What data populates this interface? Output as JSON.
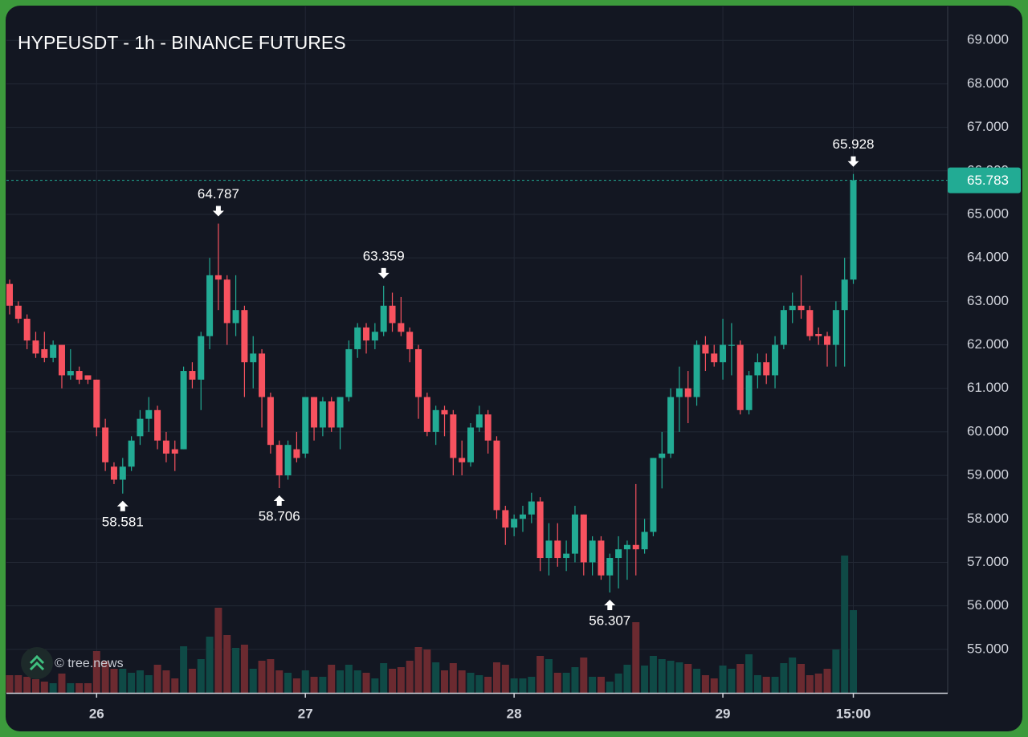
{
  "chart_data": {
    "type": "candlestick",
    "title": "HYPEUSDT - 1h - BINANCE FUTURES",
    "watermark": "© tree.news",
    "categories": [
      null,
      null,
      null,
      null,
      null,
      null,
      null,
      null,
      null,
      null,
      "26",
      null,
      null,
      null,
      null,
      null,
      null,
      null,
      null,
      null,
      null,
      null,
      null,
      null,
      null,
      null,
      null,
      null,
      null,
      null,
      null,
      null,
      null,
      null,
      "27",
      null,
      null,
      null,
      null,
      null,
      null,
      null,
      null,
      null,
      null,
      null,
      null,
      null,
      null,
      null,
      null,
      null,
      null,
      null,
      null,
      null,
      null,
      null,
      "28",
      null,
      null,
      null,
      null,
      null,
      null,
      null,
      null,
      null,
      null,
      null,
      null,
      null,
      null,
      null,
      null,
      null,
      null,
      null,
      null,
      null,
      null,
      null,
      "29",
      null,
      null,
      null,
      null,
      null,
      null,
      null,
      null,
      null,
      null,
      null,
      null,
      null,
      null,
      "15:00"
    ],
    "ohlc": [
      [
        63.4,
        63.5,
        62.7,
        62.9
      ],
      [
        62.9,
        63.0,
        62.5,
        62.6
      ],
      [
        62.6,
        62.7,
        61.9,
        62.1
      ],
      [
        62.1,
        62.3,
        61.7,
        61.8
      ],
      [
        61.9,
        62.3,
        61.6,
        61.7
      ],
      [
        61.7,
        62.1,
        61.6,
        62.0
      ],
      [
        62.0,
        62.0,
        61.0,
        61.3
      ],
      [
        61.3,
        61.9,
        61.2,
        61.4
      ],
      [
        61.4,
        61.5,
        61.1,
        61.2
      ],
      [
        61.3,
        61.3,
        61.1,
        61.2
      ],
      [
        61.2,
        61.2,
        59.9,
        60.1
      ],
      [
        60.1,
        60.3,
        59.1,
        59.3
      ],
      [
        59.2,
        59.3,
        58.8,
        58.9
      ],
      [
        58.9,
        59.4,
        58.581,
        59.2
      ],
      [
        59.2,
        59.9,
        59.1,
        59.8
      ],
      [
        59.9,
        60.5,
        59.7,
        60.3
      ],
      [
        60.3,
        60.8,
        60.0,
        60.5
      ],
      [
        60.5,
        60.6,
        59.6,
        59.8
      ],
      [
        59.8,
        60.0,
        59.3,
        59.5
      ],
      [
        59.6,
        59.8,
        59.1,
        59.5
      ],
      [
        59.6,
        61.5,
        59.6,
        61.4
      ],
      [
        61.4,
        61.6,
        61.0,
        61.2
      ],
      [
        61.2,
        62.3,
        60.5,
        62.2
      ],
      [
        62.2,
        64.0,
        61.9,
        63.6
      ],
      [
        63.6,
        64.787,
        62.8,
        63.5
      ],
      [
        63.5,
        63.6,
        62.0,
        62.5
      ],
      [
        62.5,
        63.6,
        62.2,
        62.8
      ],
      [
        62.8,
        62.9,
        60.8,
        61.6
      ],
      [
        61.6,
        62.2,
        61.0,
        61.8
      ],
      [
        61.8,
        61.9,
        60.1,
        60.8
      ],
      [
        60.8,
        60.9,
        59.5,
        59.7
      ],
      [
        59.7,
        59.8,
        58.706,
        59.0
      ],
      [
        59.0,
        59.8,
        58.9,
        59.7
      ],
      [
        59.6,
        60.0,
        59.3,
        59.4
      ],
      [
        59.5,
        60.8,
        59.4,
        60.8
      ],
      [
        60.8,
        60.8,
        59.8,
        60.1
      ],
      [
        60.1,
        60.8,
        59.9,
        60.7
      ],
      [
        60.7,
        60.8,
        60.0,
        60.1
      ],
      [
        60.1,
        60.8,
        59.6,
        60.8
      ],
      [
        60.8,
        62.1,
        60.7,
        61.9
      ],
      [
        61.9,
        62.5,
        61.7,
        62.4
      ],
      [
        62.4,
        62.5,
        61.8,
        62.1
      ],
      [
        62.1,
        62.5,
        61.9,
        62.3
      ],
      [
        62.3,
        63.359,
        62.2,
        62.9
      ],
      [
        62.9,
        63.2,
        62.3,
        62.5
      ],
      [
        62.5,
        63.1,
        62.2,
        62.3
      ],
      [
        62.3,
        62.4,
        61.6,
        61.9
      ],
      [
        61.9,
        62.0,
        60.3,
        60.8
      ],
      [
        60.8,
        60.9,
        59.9,
        60.0
      ],
      [
        60.0,
        60.6,
        59.7,
        60.5
      ],
      [
        60.5,
        60.6,
        59.9,
        60.4
      ],
      [
        60.4,
        60.5,
        59.0,
        59.4
      ],
      [
        59.4,
        59.8,
        59.0,
        59.3
      ],
      [
        59.3,
        60.2,
        59.2,
        60.1
      ],
      [
        60.1,
        60.6,
        60.0,
        60.4
      ],
      [
        60.4,
        60.5,
        59.5,
        59.8
      ],
      [
        59.8,
        59.9,
        58.0,
        58.2
      ],
      [
        58.2,
        58.3,
        57.4,
        57.8
      ],
      [
        57.8,
        58.1,
        57.6,
        58.0
      ],
      [
        58.0,
        58.3,
        57.7,
        58.1
      ],
      [
        58.1,
        58.6,
        57.9,
        58.4
      ],
      [
        58.4,
        58.5,
        56.8,
        57.1
      ],
      [
        57.1,
        57.9,
        56.7,
        57.5
      ],
      [
        57.5,
        57.9,
        56.9,
        57.1
      ],
      [
        57.1,
        57.5,
        56.8,
        57.2
      ],
      [
        57.2,
        58.3,
        57.0,
        58.1
      ],
      [
        58.1,
        58.1,
        56.7,
        57.0
      ],
      [
        57.0,
        57.6,
        56.7,
        57.5
      ],
      [
        57.5,
        57.6,
        56.6,
        56.7
      ],
      [
        56.7,
        57.2,
        56.307,
        57.1
      ],
      [
        57.1,
        57.6,
        56.4,
        57.3
      ],
      [
        57.3,
        57.5,
        56.6,
        57.4
      ],
      [
        57.4,
        58.8,
        56.7,
        57.3
      ],
      [
        57.3,
        58.0,
        57.2,
        57.7
      ],
      [
        57.7,
        59.4,
        57.6,
        59.4
      ],
      [
        59.4,
        60.0,
        58.7,
        59.5
      ],
      [
        59.5,
        61.0,
        59.4,
        60.8
      ],
      [
        60.8,
        61.5,
        60.0,
        61.0
      ],
      [
        61.0,
        61.4,
        60.2,
        60.8
      ],
      [
        60.8,
        62.1,
        60.6,
        62.0
      ],
      [
        62.0,
        62.2,
        61.4,
        61.8
      ],
      [
        61.8,
        62.0,
        61.5,
        61.6
      ],
      [
        61.6,
        62.6,
        61.2,
        62.0
      ],
      [
        62.0,
        62.5,
        61.3,
        62.0
      ],
      [
        62.0,
        62.1,
        60.4,
        60.5
      ],
      [
        60.5,
        61.4,
        60.4,
        61.3
      ],
      [
        61.3,
        61.8,
        61.0,
        61.6
      ],
      [
        61.6,
        61.8,
        61.1,
        61.3
      ],
      [
        61.3,
        62.2,
        61.0,
        62.0
      ],
      [
        62.0,
        62.9,
        61.9,
        62.8
      ],
      [
        62.8,
        63.2,
        62.5,
        62.9
      ],
      [
        62.9,
        63.6,
        62.6,
        62.8
      ],
      [
        62.8,
        62.9,
        62.1,
        62.2
      ],
      [
        62.25,
        62.4,
        62.0,
        62.2
      ],
      [
        62.2,
        62.3,
        61.5,
        62.0
      ],
      [
        62.0,
        63.0,
        61.5,
        62.8
      ],
      [
        62.8,
        64.0,
        61.5,
        63.5
      ],
      [
        63.5,
        65.928,
        63.4,
        65.783
      ]
    ],
    "volume": [
      22,
      22,
      20,
      17,
      14,
      12,
      24,
      12,
      12,
      12,
      52,
      40,
      30,
      30,
      25,
      28,
      22,
      35,
      28,
      18,
      58,
      30,
      42,
      70,
      106,
      72,
      56,
      60,
      30,
      40,
      42,
      28,
      25,
      18,
      28,
      20,
      20,
      35,
      28,
      35,
      28,
      25,
      18,
      37,
      30,
      32,
      40,
      57,
      54,
      38,
      28,
      37,
      28,
      25,
      22,
      20,
      38,
      35,
      18,
      18,
      20,
      46,
      42,
      25,
      25,
      32,
      44,
      20,
      20,
      14,
      24,
      35,
      88,
      34,
      46,
      42,
      40,
      38,
      36,
      30,
      22,
      18,
      34,
      30,
      36,
      48,
      22,
      20,
      20,
      37,
      44,
      36,
      22,
      24,
      30,
      54,
      171,
      103
    ],
    "high_markers": [
      24,
      43,
      97
    ],
    "low_markers": [
      13,
      31,
      69
    ],
    "up_color": "#22ab94",
    "down_color": "#f7525f",
    "up_volume_color": "#0f4a46",
    "down_volume_color": "#6b2a30",
    "ylim": [
      54.0,
      69.78
    ],
    "yticks": [
      {
        "value": 55,
        "label": "55.000"
      },
      {
        "value": 56,
        "label": "56.000"
      },
      {
        "value": 57,
        "label": "57.000"
      },
      {
        "value": 58,
        "label": "58.000"
      },
      {
        "value": 59,
        "label": "59.000"
      },
      {
        "value": 60,
        "label": "60.000"
      },
      {
        "value": 61,
        "label": "61.000"
      },
      {
        "value": 62,
        "label": "62.000"
      },
      {
        "value": 63,
        "label": "63.000"
      },
      {
        "value": 64,
        "label": "64.000"
      },
      {
        "value": 65,
        "label": "65.000"
      },
      {
        "value": 66,
        "label": "66.000"
      },
      {
        "value": 67,
        "label": "67.000"
      },
      {
        "value": 68,
        "label": "68.000"
      },
      {
        "value": 69,
        "label": "69.000"
      }
    ],
    "grid": true
  }
}
